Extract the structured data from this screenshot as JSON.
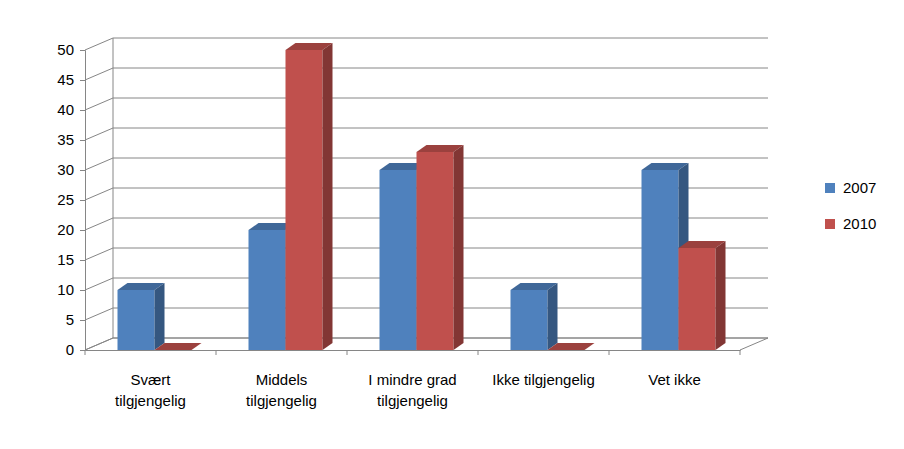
{
  "chart_data": {
    "type": "bar",
    "categories": [
      "Svært tilgjengelig",
      "Middels tilgjengelig",
      "I mindre grad tilgjengelig",
      "Ikke tilgjengelig",
      "Vet ikke"
    ],
    "series": [
      {
        "name": "2007",
        "color": "#4f81bd",
        "values": [
          10,
          20,
          30,
          10,
          30
        ]
      },
      {
        "name": "2010",
        "color": "#c0504d",
        "values": [
          0,
          50,
          33,
          0,
          17
        ]
      }
    ],
    "ylim": [
      0,
      50
    ],
    "yticks": [
      0,
      5,
      10,
      15,
      20,
      25,
      30,
      35,
      40,
      45,
      50
    ],
    "grid": true,
    "legend": "right"
  }
}
